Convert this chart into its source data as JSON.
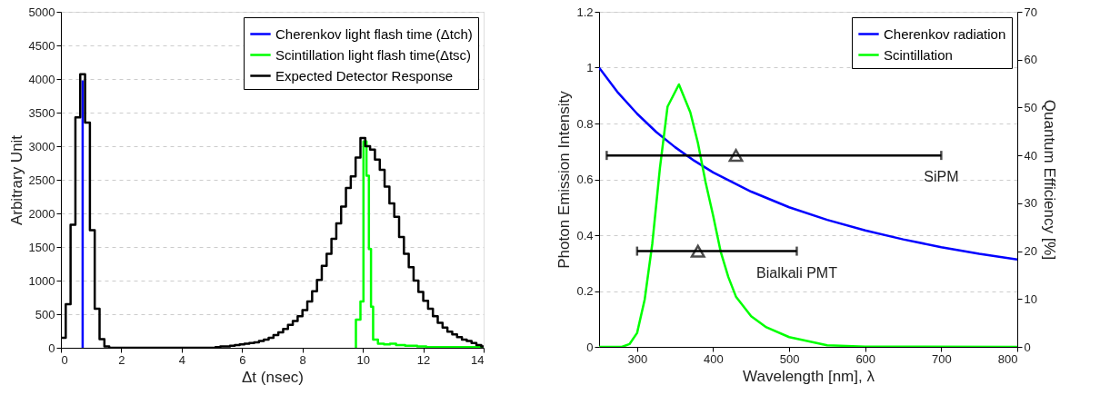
{
  "chart_data": [
    {
      "type": "step",
      "xlabel": "Δt (nsec)",
      "ylabel": "Arbitrary Unit",
      "xlim": [
        0,
        14
      ],
      "xticks": [
        0,
        2,
        4,
        6,
        8,
        10,
        12,
        14
      ],
      "ylim": [
        0,
        5000
      ],
      "yticks": [
        0,
        500,
        1000,
        1500,
        2000,
        2500,
        3000,
        3500,
        4000,
        4500,
        5000
      ],
      "grid": "y",
      "legend": "top right",
      "series": [
        {
          "name": "Cherenkov light flash time (Δtch)",
          "color": "#0000ff",
          "x": [
            0.72,
            0.72
          ],
          "values": [
            0,
            3980
          ]
        },
        {
          "name": "Scintillation light flash time(Δtsc)",
          "color": "#00ff00",
          "x": [
            9.77,
            9.77,
            9.92,
            10.02,
            10.12,
            10.2,
            10.27,
            10.34,
            10.5,
            10.7,
            10.9,
            11.1,
            11.4,
            11.8,
            12.1,
            13.96
          ],
          "values": [
            0,
            420,
            690,
            3070,
            2560,
            1470,
            610,
            120,
            60,
            50,
            60,
            40,
            30,
            20,
            10,
            0
          ]
        },
        {
          "name": "Expected Detector Response",
          "color": "#000000",
          "x": [
            0,
            0.16,
            0.32,
            0.48,
            0.64,
            0.8,
            0.96,
            1.12,
            1.28,
            1.44,
            1.6,
            5.12,
            5.28,
            5.44,
            5.6,
            5.76,
            5.92,
            6.08,
            6.24,
            6.4,
            6.56,
            6.72,
            6.88,
            7.04,
            7.2,
            7.36,
            7.52,
            7.68,
            7.84,
            8.0,
            8.16,
            8.32,
            8.48,
            8.64,
            8.8,
            8.96,
            9.12,
            9.28,
            9.44,
            9.6,
            9.76,
            9.92,
            10.08,
            10.24,
            10.4,
            10.56,
            10.72,
            10.88,
            11.04,
            11.2,
            11.36,
            11.52,
            11.68,
            11.84,
            12.0,
            12.16,
            12.32,
            12.48,
            12.64,
            12.8,
            12.96,
            13.12,
            13.28,
            13.44,
            13.6,
            13.76,
            13.92,
            14.0
          ],
          "values": [
            150,
            650,
            1830,
            3430,
            4070,
            3350,
            1750,
            580,
            130,
            20,
            0,
            10,
            20,
            20,
            30,
            40,
            50,
            60,
            70,
            80,
            100,
            120,
            150,
            190,
            230,
            280,
            340,
            400,
            470,
            560,
            690,
            840,
            1010,
            1220,
            1400,
            1620,
            1850,
            2100,
            2380,
            2550,
            2830,
            3120,
            3000,
            2950,
            2800,
            2650,
            2400,
            2150,
            1950,
            1650,
            1400,
            1200,
            1000,
            830,
            700,
            580,
            470,
            370,
            300,
            240,
            200,
            160,
            120,
            100,
            70,
            40,
            20,
            20
          ]
        }
      ]
    },
    {
      "type": "line",
      "xlabel": "Wavelength [nm], λ",
      "ylabel": "Photon Emission Intensity",
      "y2label": "Quantum Efficiency [%]",
      "xlim": [
        250,
        800
      ],
      "xticks": [
        300,
        400,
        500,
        600,
        700,
        800
      ],
      "ylim": [
        0,
        1.2
      ],
      "yticks": [
        0,
        0.2,
        0.4,
        0.6,
        0.8,
        1,
        1.2
      ],
      "y2lim": [
        0,
        70
      ],
      "y2ticks": [
        0,
        10,
        20,
        30,
        40,
        50,
        60,
        70
      ],
      "grid": "y",
      "legend": "top right",
      "annotations": [
        "SiPM",
        "Bialkali PMT"
      ],
      "series": [
        {
          "name": "Cherenkov radiation",
          "color": "#0000ff",
          "x": [
            250,
            275,
            300,
            325,
            350,
            375,
            400,
            450,
            500,
            550,
            600,
            650,
            700,
            750,
            800
          ],
          "values": [
            1.0,
            0.91,
            0.835,
            0.77,
            0.715,
            0.667,
            0.625,
            0.556,
            0.5,
            0.455,
            0.417,
            0.385,
            0.357,
            0.333,
            0.313
          ]
        },
        {
          "name": "Scintillation",
          "color": "#00ff00",
          "x": [
            250,
            280,
            290,
            300,
            310,
            320,
            330,
            340,
            355,
            370,
            380,
            390,
            400,
            410,
            420,
            430,
            450,
            470,
            500,
            550,
            600,
            800
          ],
          "values": [
            0,
            0,
            0.01,
            0.05,
            0.17,
            0.37,
            0.64,
            0.86,
            0.94,
            0.84,
            0.73,
            0.59,
            0.47,
            0.34,
            0.25,
            0.18,
            0.11,
            0.07,
            0.035,
            0.006,
            0.001,
            0
          ]
        },
        {
          "type": "scatter",
          "axis": "y2",
          "color": "#000000",
          "marker": "triangle",
          "x": [
            430
          ],
          "values": [
            40
          ],
          "xerrors": [
            [
              260,
              700
            ]
          ]
        },
        {
          "type": "scatter",
          "axis": "y2",
          "color": "#000000",
          "marker": "triangle",
          "x": [
            380
          ],
          "values": [
            20
          ],
          "xerrors": [
            [
              300,
              510
            ]
          ]
        }
      ]
    }
  ]
}
